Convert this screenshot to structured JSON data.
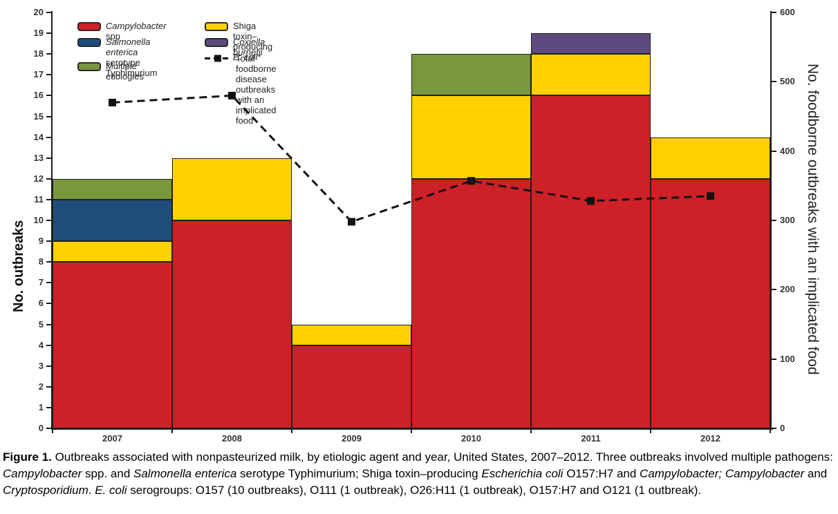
{
  "chart_data": {
    "type": "bar",
    "subtype": "stacked-bar-with-line",
    "categories": [
      "2007",
      "2008",
      "2009",
      "2010",
      "2011",
      "2012"
    ],
    "bar_series": [
      {
        "name": "Campylobacter spp",
        "key": "campylobacter",
        "color": "#CE2027",
        "values": [
          8,
          10,
          4,
          12,
          16,
          12
        ]
      },
      {
        "name": "Shiga toxin–producing E. coli*",
        "key": "stec",
        "color": "#FFD100",
        "values": [
          1,
          3,
          1,
          4,
          2,
          2
        ]
      },
      {
        "name": "Salmonella enterica serotype Typhimurium",
        "key": "salmonella",
        "color": "#1F4E7B",
        "values": [
          2,
          0,
          0,
          0,
          0,
          0
        ]
      },
      {
        "name": "Multiple etiologies",
        "key": "multiple",
        "color": "#78973F",
        "values": [
          1,
          0,
          0,
          2,
          0,
          0
        ]
      },
      {
        "name": "Coxiella burnetii",
        "key": "coxiella",
        "color": "#5D4B7E",
        "values": [
          0,
          0,
          0,
          0,
          1,
          0
        ]
      }
    ],
    "bar_totals": [
      12,
      13,
      5,
      18,
      19,
      14
    ],
    "line_series": {
      "name": "Total foodborne disease outbreaks with an implicated food",
      "axis": "right",
      "color": "#111111",
      "style": "dashed-with-square-markers",
      "values": [
        470,
        480,
        298,
        357,
        328,
        335
      ]
    },
    "left_axis": {
      "label": "No. outbreaks",
      "min": 0,
      "max": 20,
      "step": 1
    },
    "right_axis": {
      "label": "No. foodborne outbreaks with an implicated food",
      "min": 0,
      "max": 600,
      "step": 100
    },
    "grid": "off",
    "legend_position": "top-left-inside"
  },
  "legend": {
    "items": [
      {
        "swatch": "campylobacter",
        "segments": [
          {
            "t": "Campylobacter",
            "i": true
          },
          {
            "t": " spp"
          }
        ]
      },
      {
        "swatch": "salmonella",
        "segments": [
          {
            "t": "Salmonella enterica",
            "i": true
          },
          {
            "t": " serotype Typhimurium"
          }
        ]
      },
      {
        "swatch": "multiple",
        "segments": [
          {
            "t": "Multiple etiologies"
          }
        ]
      },
      {
        "swatch": "stec",
        "segments": [
          {
            "t": "Shiga toxin–producing "
          },
          {
            "t": "E. coli",
            "i": true
          },
          {
            "t": "*"
          }
        ]
      },
      {
        "swatch": "coxiella",
        "segments": [
          {
            "t": "Coxiella burnetii",
            "i": true
          }
        ]
      },
      {
        "swatch": "line",
        "segments": [
          {
            "t": "Total foodborne disease outbreaks with an implicated food"
          }
        ]
      }
    ]
  },
  "caption": {
    "segments": [
      {
        "t": "Figure 1.",
        "b": true
      },
      {
        "t": " Outbreaks associated with nonpasteurized milk, by etiologic agent and year, United States, 2007–2012. Three outbreaks involved multiple pathogens: "
      },
      {
        "t": "Campylobacter",
        "i": true
      },
      {
        "t": " spp. and "
      },
      {
        "t": "Salmonella enterica",
        "i": true
      },
      {
        "t": " serotype Typhimurium; Shiga toxin–producing "
      },
      {
        "t": "Escherichia coli",
        "i": true
      },
      {
        "t": " O157:H7 and "
      },
      {
        "t": "Campylobacter;",
        "i": true
      },
      {
        "t": " "
      },
      {
        "t": "Campylobacter",
        "i": true
      },
      {
        "t": " and "
      },
      {
        "t": "Cryptosporidium",
        "i": true
      },
      {
        "t": ". "
      },
      {
        "t": "E. coli",
        "i": true
      },
      {
        "t": " serogroups: O157 (10 outbreaks), O111 (1 outbreak), O26:H11 (1 outbreak), O157:H7 and O121 (1 outbreak)."
      }
    ]
  }
}
